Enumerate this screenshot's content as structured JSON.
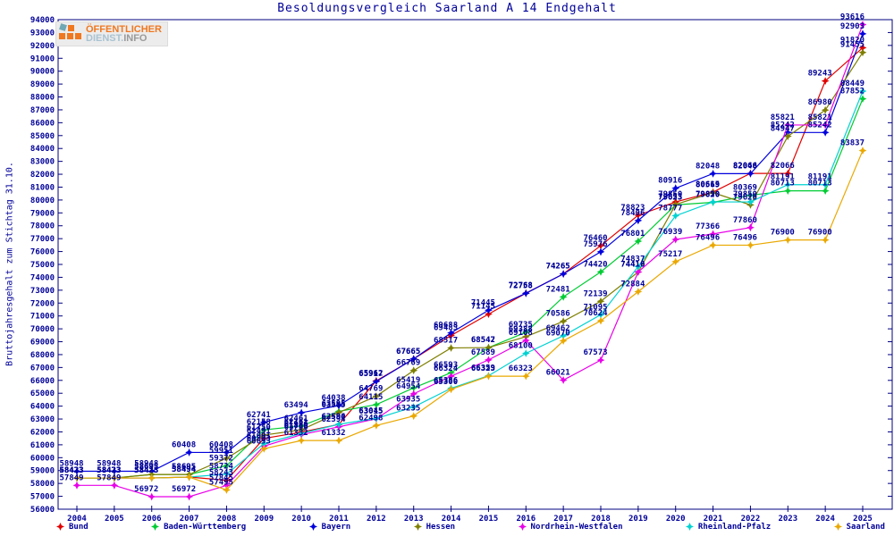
{
  "logo": {
    "line1": "ÖFFENTLICHER",
    "line2_a": "DIENST.",
    "line2_b": "INFO"
  },
  "chart_data": {
    "type": "line",
    "title": "Besoldungsvergleich Saarland A 14 Endgehalt",
    "ylabel": "Bruttojahresgehalt zum Stichtag 31.10.",
    "xlabel": "",
    "ylim": [
      56000,
      94000
    ],
    "ytick_step": 1000,
    "grid": false,
    "point_labels": true,
    "label_color": "#000099",
    "axis_color": "#000080",
    "legend_position": "bottom",
    "categories": [
      2004,
      2005,
      2006,
      2007,
      2008,
      2009,
      2010,
      2011,
      2012,
      2013,
      2014,
      2015,
      2016,
      2017,
      2018,
      2019,
      2020,
      2021,
      2022,
      2023,
      2024,
      2025
    ],
    "series": [
      {
        "name": "Bund",
        "color": "#e10000",
        "values": [
          58423,
          58423,
          58423,
          58494,
          58243,
          61491,
          61986,
          62580,
          65962,
          67665,
          69483,
          71145,
          72768,
          74265,
          76460,
          78823,
          79850,
          80615,
          82066,
          82066,
          89243,
          91820
        ]
      },
      {
        "name": "Baden-Württemberg",
        "color": "#00cc33",
        "values": [
          58423,
          58423,
          58695,
          58695,
          59372,
          62158,
          62461,
          63595,
          64115,
          65419,
          66593,
          68542,
          69735,
          72481,
          74420,
          76801,
          79623,
          79820,
          80369,
          80713,
          80713,
          87852
        ]
      },
      {
        "name": "Bayern",
        "color": "#0000dd",
        "values": [
          58948,
          58948,
          58948,
          60408,
          60408,
          62741,
          63494,
          64038,
          65917,
          67665,
          69688,
          71445,
          72758,
          74265,
          75976,
          78406,
          80916,
          82048,
          82048,
          85242,
          85242,
          92903
        ]
      },
      {
        "name": "Hessen",
        "color": "#7e7e00",
        "values": [
          58423,
          58423,
          58695,
          58695,
          59951,
          61750,
          62161,
          63505,
          64769,
          66769,
          68517,
          68547,
          69388,
          70586,
          72139,
          74410,
          79653,
          80569,
          79620,
          84947,
          86980,
          91455
        ]
      },
      {
        "name": "Nordrhein-Westfalen",
        "color": "#e800e8",
        "values": [
          57849,
          57849,
          56972,
          56972,
          57845,
          60893,
          61786,
          62394,
          63015,
          64954,
          66324,
          67589,
          69108,
          66021,
          67573,
          74416,
          76939,
          77366,
          77860,
          85821,
          85821,
          93616
        ]
      },
      {
        "name": "Rheinland-Pfalz",
        "color": "#00d2d2",
        "values": [
          58423,
          58423,
          58423,
          58494,
          58724,
          61091,
          61886,
          62594,
          63045,
          63935,
          65386,
          66359,
          68100,
          69462,
          71095,
          74837,
          78777,
          79850,
          79850,
          81191,
          81191,
          88449
        ]
      },
      {
        "name": "Saarland",
        "color": "#eaa800",
        "values": [
          58423,
          58423,
          58423,
          58494,
          57495,
          60693,
          61332,
          61332,
          62498,
          63235,
          65300,
          66323,
          66323,
          69070,
          70624,
          72884,
          75217,
          76496,
          76496,
          76900,
          76900,
          83837
        ]
      }
    ]
  }
}
